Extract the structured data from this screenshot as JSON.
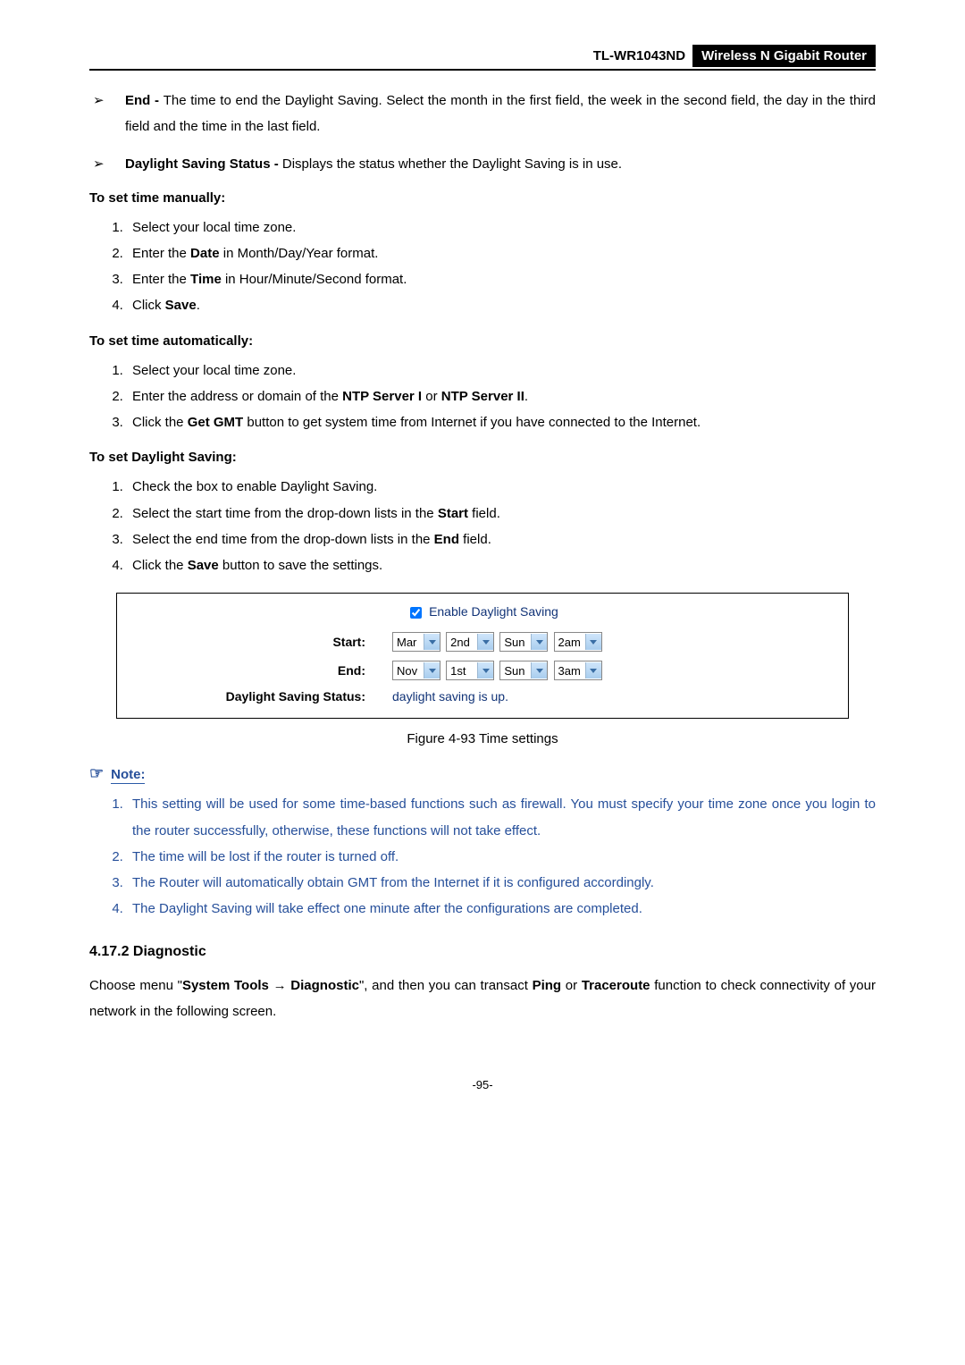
{
  "header": {
    "model": "TL-WR1043ND",
    "desc": "Wireless N Gigabit Router"
  },
  "bullets": {
    "end": {
      "label": "End - ",
      "text": "The time to end the Daylight Saving. Select the month in the first field, the week in the second field, the day in the third field and the time in the last field."
    },
    "dss": {
      "label": "Daylight Saving Status - ",
      "text": "Displays the status whether the Daylight Saving is in use."
    }
  },
  "manual": {
    "heading": "To set time manually:",
    "s1a": "Select your local time zone.",
    "s2a": "Enter the ",
    "s2b": "Date",
    "s2c": " in Month/Day/Year format.",
    "s3a": "Enter the ",
    "s3b": "Time",
    "s3c": " in Hour/Minute/Second format.",
    "s4a": "Click ",
    "s4b": "Save",
    "s4c": "."
  },
  "auto": {
    "heading": "To set time automatically:",
    "s1": "Select your local time zone.",
    "s2a": "Enter the address or domain of the ",
    "s2b": "NTP Server I",
    "s2c": " or ",
    "s2d": "NTP Server II",
    "s2e": ".",
    "s3a": "Click the ",
    "s3b": "Get GMT",
    "s3c": " button to get system time from Internet if you have connected to the Internet."
  },
  "ds": {
    "heading": "To set Daylight Saving:",
    "s1": "Check the box to enable Daylight Saving.",
    "s2a": "Select the start time from the drop-down lists in the ",
    "s2b": "Start",
    "s2c": " field.",
    "s3a": "Select the end time from the drop-down lists in the ",
    "s3b": "End",
    "s3c": " field.",
    "s4a": "Click the ",
    "s4b": "Save",
    "s4c": " button to save the settings."
  },
  "panel": {
    "enable_label": "Enable Daylight Saving",
    "start_label": "Start:",
    "end_label": "End:",
    "status_label": "Daylight Saving Status:",
    "status_value": "daylight saving is up.",
    "start": {
      "month": "Mar",
      "week": "2nd",
      "day": "Sun",
      "time": "2am"
    },
    "end": {
      "month": "Nov",
      "week": "1st",
      "day": "Sun",
      "time": "3am"
    }
  },
  "figure_caption": "Figure 4-93    Time settings",
  "note": {
    "label": "Note:",
    "n1": "This setting will be used for some time-based functions such as firewall. You must specify your time zone once you login to the router successfully, otherwise, these functions will not take effect.",
    "n2": "The time will be lost if the router is turned off.",
    "n3": "The Router will automatically obtain GMT from the Internet if it is configured accordingly.",
    "n4": "The Daylight Saving will take effect one minute after the configurations are completed."
  },
  "diag": {
    "heading": "4.17.2  Diagnostic",
    "p1a": "Choose menu \"",
    "p1b": "System Tools",
    "p1c": " → ",
    "p1d": "Diagnostic",
    "p1e": "\", and then you can transact ",
    "p1f": "Ping",
    "p1g": " or ",
    "p1h": "Traceroute",
    "p1i": " function to check connectivity of your network in the following screen."
  },
  "page_number": "-95-"
}
